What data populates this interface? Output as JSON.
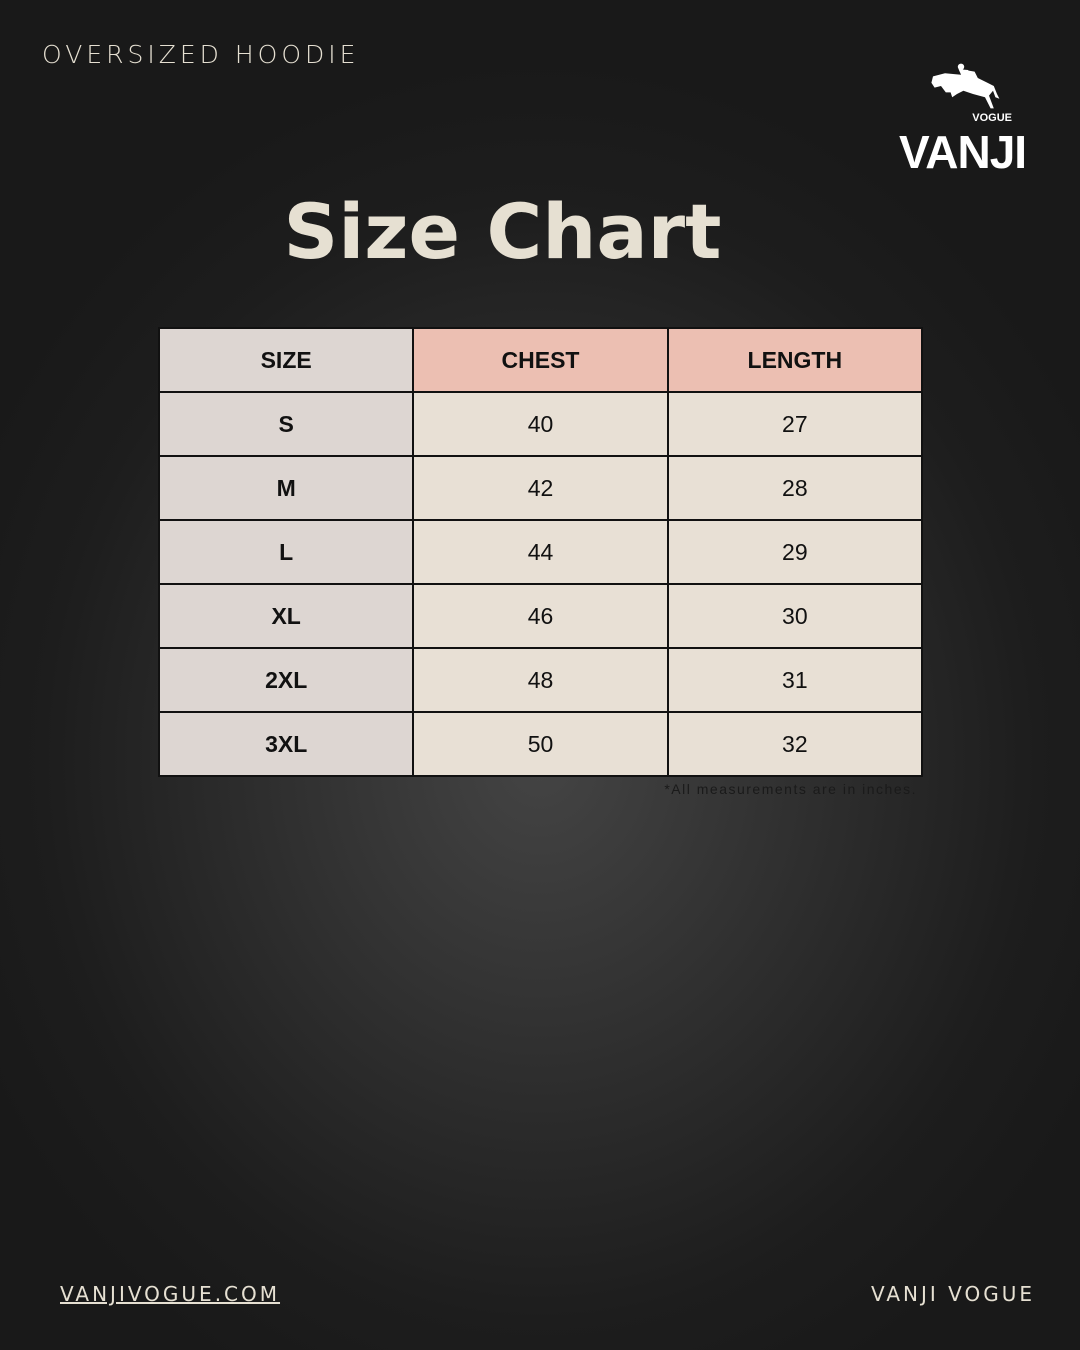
{
  "header": {
    "subtitle": "OVERSIZED HOODIE",
    "title": "Size Chart"
  },
  "logo": {
    "text": "VANJI",
    "subtext": "VOGUE",
    "icon": "horse-jumping-rider-icon"
  },
  "table": {
    "columns": [
      "SIZE",
      "CHEST",
      "LENGTH"
    ],
    "rows": [
      [
        "S",
        "40",
        "27"
      ],
      [
        "M",
        "42",
        "28"
      ],
      [
        "L",
        "44",
        "29"
      ],
      [
        "XL",
        "46",
        "30"
      ],
      [
        "2XL",
        "48",
        "31"
      ],
      [
        "3XL",
        "50",
        "32"
      ]
    ],
    "note": "*All measurements are in inches."
  },
  "footer": {
    "website": "VANJIVOGUE.COM",
    "brand": "VANJI VOGUE"
  },
  "colors": {
    "header_accent": "#ecbfb2",
    "size_column": "#ddd6d2",
    "cell": "#e8e0d5",
    "text_light": "#e6e0d2"
  }
}
